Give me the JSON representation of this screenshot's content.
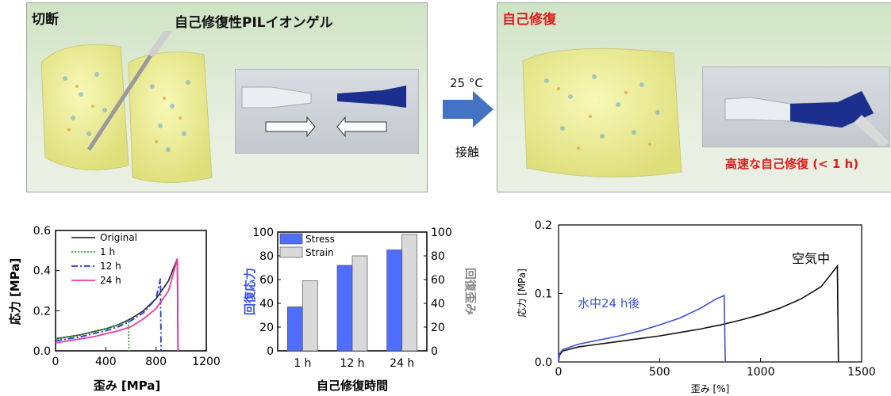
{
  "panels": {
    "left": {
      "title_cut": "切断",
      "title_main": "自己修復性PILイオンゲル"
    },
    "middle": {
      "temp": "25 °C",
      "contact": "接触"
    },
    "right": {
      "title": "自己修復",
      "fast": "高速な自己修復 (< 1 h)"
    }
  },
  "colors": {
    "gel": "#efef9a",
    "accent_red": "#e31c1c",
    "arrow": "#4472c4",
    "bar_stress": "#4f6dff",
    "bar_strain": "#d9d9d9"
  },
  "chart_data": [
    {
      "type": "line",
      "xlabel": "歪み [MPa]",
      "ylabel": "応力 [MPa]",
      "xlim": [
        0,
        1200
      ],
      "ylim": [
        0,
        0.6
      ],
      "xticks": [
        "0",
        "400",
        "800",
        "1200"
      ],
      "yticks": [
        "0.0",
        "0.2",
        "0.4",
        "0.6"
      ],
      "legend": [
        "Original",
        "1 h",
        "12 h",
        "24 h"
      ],
      "series": [
        {
          "name": "Original",
          "color": "#333333",
          "style": "solid",
          "x": [
            0,
            100,
            200,
            300,
            400,
            500,
            600,
            700,
            800,
            900,
            970,
            975
          ],
          "y": [
            0.06,
            0.07,
            0.08,
            0.095,
            0.11,
            0.13,
            0.16,
            0.2,
            0.26,
            0.35,
            0.46,
            0.0
          ]
        },
        {
          "name": "1 h",
          "color": "#2aa82a",
          "style": "dotted",
          "x": [
            0,
            100,
            200,
            300,
            400,
            500,
            580,
            585
          ],
          "y": [
            0.06,
            0.07,
            0.08,
            0.095,
            0.11,
            0.13,
            0.15,
            0.0
          ]
        },
        {
          "name": "12 h",
          "color": "#1f3bd6",
          "style": "dashdot",
          "x": [
            0,
            100,
            200,
            300,
            400,
            500,
            600,
            700,
            800,
            835,
            840
          ],
          "y": [
            0.05,
            0.06,
            0.07,
            0.085,
            0.1,
            0.12,
            0.15,
            0.19,
            0.26,
            0.36,
            0.0
          ]
        },
        {
          "name": "24 h",
          "color": "#f03aa0",
          "style": "solid",
          "x": [
            0,
            100,
            200,
            300,
            400,
            500,
            600,
            700,
            800,
            900,
            970,
            975
          ],
          "y": [
            0.04,
            0.05,
            0.06,
            0.07,
            0.085,
            0.1,
            0.12,
            0.16,
            0.21,
            0.3,
            0.46,
            0.0
          ]
        }
      ]
    },
    {
      "type": "bar",
      "xlabel": "自己修復時間",
      "ylabel": "回復応力",
      "ylabel_right": "回復歪み",
      "ylim": [
        0,
        100
      ],
      "yticks": [
        "0",
        "20",
        "40",
        "60",
        "80",
        "100"
      ],
      "categories": [
        "1 h",
        "12 h",
        "24 h"
      ],
      "series": [
        {
          "name": "Stress",
          "color": "#4f6dff",
          "values": [
            37,
            72,
            85
          ]
        },
        {
          "name": "Strain",
          "color": "#d9d9d9",
          "values": [
            59,
            80,
            98
          ]
        }
      ]
    },
    {
      "type": "line",
      "xlabel": "歪み [%]",
      "ylabel": "応力 [MPa]",
      "xlim": [
        0,
        1500
      ],
      "ylim": [
        0,
        0.2
      ],
      "xticks": [
        "0",
        "500",
        "1000",
        "1500"
      ],
      "yticks": [
        "0.0",
        "0.1",
        "0.2"
      ],
      "annotations": [
        "空気中",
        "水中24 h後"
      ],
      "series": [
        {
          "name": "空気中",
          "color": "#111111",
          "x": [
            0,
            5,
            20,
            100,
            200,
            300,
            400,
            500,
            600,
            700,
            800,
            900,
            1000,
            1100,
            1200,
            1300,
            1380,
            1385
          ],
          "y": [
            0.0,
            0.01,
            0.016,
            0.022,
            0.026,
            0.03,
            0.034,
            0.038,
            0.043,
            0.048,
            0.054,
            0.061,
            0.069,
            0.079,
            0.092,
            0.11,
            0.14,
            0.0
          ]
        },
        {
          "name": "水中24 h後",
          "color": "#3b53d6",
          "x": [
            0,
            5,
            20,
            100,
            200,
            300,
            400,
            500,
            600,
            700,
            780,
            820,
            825
          ],
          "y": [
            0.0,
            0.012,
            0.018,
            0.026,
            0.032,
            0.038,
            0.045,
            0.054,
            0.064,
            0.078,
            0.092,
            0.097,
            0.0
          ]
        }
      ]
    }
  ]
}
